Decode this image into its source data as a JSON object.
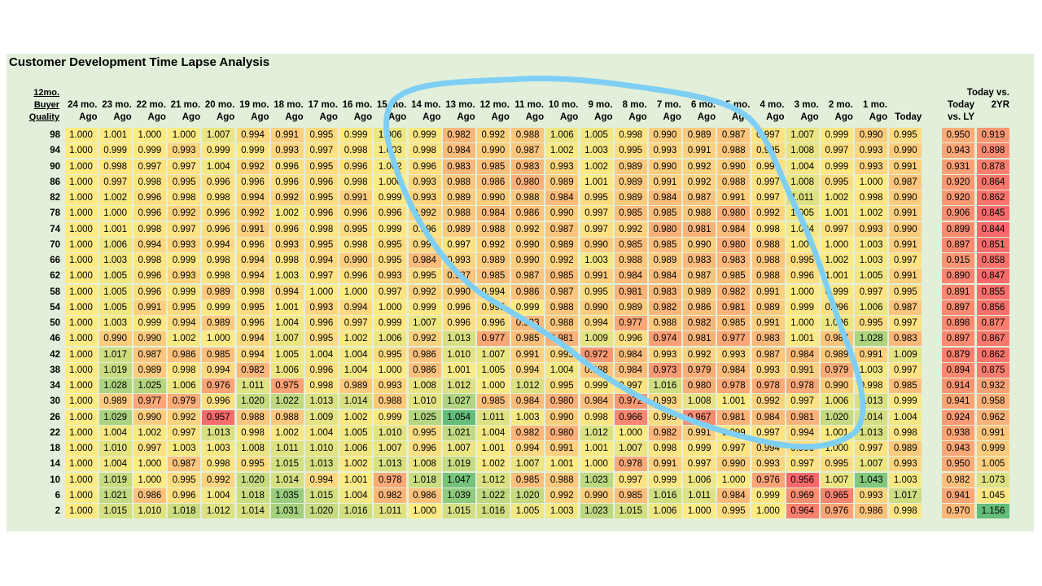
{
  "title": "Customer Development Time Lapse Analysis",
  "colors": {
    "panel_bg": "#e2efda",
    "low": "#f8696b",
    "mid": "#ffeb84",
    "high": "#63be7b",
    "annotation_stroke": "#7fcff5"
  },
  "chart_data": {
    "type": "heatmap",
    "row_header": [
      "12mo.",
      "Buyer",
      "Quality"
    ],
    "columns": [
      [
        "24 mo.",
        "Ago"
      ],
      [
        "23 mo.",
        "Ago"
      ],
      [
        "22 mo.",
        "Ago"
      ],
      [
        "21 mo.",
        "Ago"
      ],
      [
        "20 mo.",
        "Ago"
      ],
      [
        "19 mo.",
        "Ago"
      ],
      [
        "18 mo.",
        "Ago"
      ],
      [
        "17 mo.",
        "Ago"
      ],
      [
        "16 mo.",
        "Ago"
      ],
      [
        "15 mo.",
        "Ago"
      ],
      [
        "14 mo.",
        "Ago"
      ],
      [
        "13 mo.",
        "Ago"
      ],
      [
        "12 mo.",
        "Ago"
      ],
      [
        "11 mo.",
        "Ago"
      ],
      [
        "10 mo.",
        "Ago"
      ],
      [
        "9 mo.",
        "Ago"
      ],
      [
        "8 mo.",
        "Ago"
      ],
      [
        "7 mo.",
        "Ago"
      ],
      [
        "6 mo.",
        "Ago"
      ],
      [
        "5 mo.",
        "Ago"
      ],
      [
        "4 mo.",
        "Ago"
      ],
      [
        "3 mo.",
        "Ago"
      ],
      [
        "2 mo.",
        "Ago"
      ],
      [
        "1 mo.",
        "Ago"
      ],
      [
        "",
        "Today"
      ]
    ],
    "summary_columns": [
      [
        "Today",
        "vs. LY"
      ],
      [
        "Today vs.",
        "2YR"
      ]
    ],
    "rows": [
      98,
      94,
      90,
      86,
      82,
      78,
      74,
      70,
      66,
      62,
      58,
      54,
      50,
      46,
      42,
      38,
      34,
      30,
      26,
      22,
      18,
      14,
      10,
      6,
      2
    ],
    "values": [
      [
        1.0,
        1.001,
        1.0,
        1.0,
        1.007,
        0.994,
        0.991,
        0.995,
        0.999,
        1.006,
        0.999,
        0.982,
        0.992,
        0.988,
        1.006,
        1.005,
        0.998,
        0.99,
        0.989,
        0.987,
        0.997,
        1.007,
        0.999,
        0.99,
        0.995
      ],
      [
        1.0,
        0.999,
        0.999,
        0.993,
        0.999,
        0.999,
        0.993,
        0.997,
        0.998,
        1.003,
        0.998,
        0.984,
        0.99,
        0.987,
        1.002,
        1.003,
        0.995,
        0.993,
        0.991,
        0.988,
        0.995,
        1.008,
        0.997,
        0.993,
        0.99
      ],
      [
        1.0,
        0.998,
        0.997,
        0.997,
        1.004,
        0.992,
        0.996,
        0.995,
        0.996,
        1.002,
        0.996,
        0.983,
        0.985,
        0.983,
        0.993,
        1.002,
        0.989,
        0.99,
        0.992,
        0.99,
        0.996,
        1.004,
        0.999,
        0.993,
        0.991
      ],
      [
        1.0,
        0.997,
        0.998,
        0.995,
        0.996,
        0.996,
        0.996,
        0.996,
        0.998,
        1.0,
        0.993,
        0.988,
        0.986,
        0.98,
        0.989,
        1.001,
        0.989,
        0.991,
        0.992,
        0.988,
        0.997,
        1.008,
        0.995,
        1.0,
        0.987
      ],
      [
        1.0,
        1.002,
        0.996,
        0.998,
        0.998,
        0.994,
        0.992,
        0.995,
        0.991,
        0.999,
        0.993,
        0.989,
        0.99,
        0.988,
        0.984,
        0.995,
        0.989,
        0.984,
        0.987,
        0.991,
        0.997,
        1.011,
        1.002,
        0.998,
        0.99
      ],
      [
        1.0,
        1.0,
        0.996,
        0.992,
        0.996,
        0.992,
        1.002,
        0.996,
        0.996,
        0.996,
        0.992,
        0.988,
        0.984,
        0.986,
        0.99,
        0.997,
        0.985,
        0.985,
        0.988,
        0.98,
        0.992,
        1.005,
        1.001,
        1.002,
        0.991
      ],
      [
        1.0,
        1.001,
        0.998,
        0.997,
        0.996,
        0.991,
        0.996,
        0.998,
        0.995,
        0.999,
        0.996,
        0.989,
        0.988,
        0.992,
        0.987,
        0.997,
        0.992,
        0.98,
        0.981,
        0.984,
        0.998,
        1.004,
        0.997,
        0.993,
        0.99
      ],
      [
        1.0,
        1.006,
        0.994,
        0.993,
        0.994,
        0.996,
        0.993,
        0.995,
        0.998,
        0.995,
        0.994,
        0.997,
        0.992,
        0.99,
        0.989,
        0.99,
        0.985,
        0.985,
        0.99,
        0.98,
        0.988,
        1.0,
        1.0,
        1.003,
        0.991
      ],
      [
        1.0,
        1.003,
        0.998,
        0.999,
        0.998,
        0.994,
        0.998,
        0.994,
        0.99,
        0.995,
        0.984,
        0.993,
        0.989,
        0.99,
        0.992,
        1.003,
        0.988,
        0.989,
        0.983,
        0.983,
        0.988,
        0.995,
        1.002,
        1.003,
        0.997
      ],
      [
        1.0,
        1.005,
        0.996,
        0.993,
        0.998,
        0.994,
        1.003,
        0.997,
        0.996,
        0.993,
        0.995,
        0.987,
        0.985,
        0.987,
        0.985,
        0.991,
        0.984,
        0.984,
        0.987,
        0.985,
        0.988,
        0.996,
        1.001,
        1.005,
        0.991
      ],
      [
        1.0,
        1.005,
        0.996,
        0.999,
        0.989,
        0.998,
        0.994,
        1.0,
        1.0,
        0.997,
        0.992,
        0.99,
        0.994,
        0.986,
        0.987,
        0.995,
        0.981,
        0.983,
        0.989,
        0.982,
        0.991,
        1.0,
        0.999,
        0.997,
        0.995
      ],
      [
        1.0,
        1.005,
        0.991,
        0.995,
        0.999,
        0.995,
        1.001,
        0.993,
        0.994,
        1.0,
        0.999,
        0.996,
        0.995,
        0.999,
        0.988,
        0.99,
        0.989,
        0.982,
        0.986,
        0.981,
        0.989,
        0.999,
        0.996,
        1.006,
        0.987
      ],
      [
        1.0,
        1.003,
        0.999,
        0.994,
        0.989,
        0.996,
        1.004,
        0.996,
        0.997,
        0.999,
        1.007,
        0.996,
        0.996,
        0.983,
        0.988,
        0.994,
        0.977,
        0.988,
        0.982,
        0.985,
        0.991,
        1.0,
        1.006,
        0.995,
        0.997
      ],
      [
        1.0,
        0.99,
        0.99,
        1.002,
        1.0,
        0.994,
        1.007,
        0.995,
        1.002,
        1.006,
        0.992,
        1.013,
        0.977,
        0.985,
        0.981,
        1.009,
        0.996,
        0.974,
        0.981,
        0.977,
        0.983,
        1.001,
        0.987,
        1.028,
        0.983
      ],
      [
        1.0,
        1.017,
        0.987,
        0.986,
        0.985,
        0.994,
        1.005,
        1.004,
        1.004,
        0.995,
        0.986,
        1.01,
        1.007,
        0.991,
        0.993,
        0.972,
        0.984,
        0.993,
        0.992,
        0.993,
        0.987,
        0.984,
        0.989,
        0.991,
        1.009
      ],
      [
        1.0,
        1.019,
        0.989,
        0.998,
        0.994,
        0.982,
        1.006,
        0.996,
        1.004,
        1.0,
        0.986,
        1.001,
        1.005,
        0.994,
        1.004,
        0.988,
        0.984,
        0.973,
        0.979,
        0.984,
        0.993,
        0.991,
        0.979,
        1.003,
        0.997
      ],
      [
        1.0,
        1.028,
        1.025,
        1.006,
        0.976,
        1.011,
        0.975,
        0.998,
        0.989,
        0.993,
        1.008,
        1.012,
        1.0,
        1.012,
        0.995,
        0.999,
        0.997,
        1.016,
        0.98,
        0.978,
        0.978,
        0.978,
        0.99,
        0.998,
        0.985
      ],
      [
        1.0,
        0.989,
        0.977,
        0.979,
        0.996,
        1.02,
        1.022,
        1.013,
        1.014,
        0.988,
        1.01,
        1.027,
        0.985,
        0.984,
        0.98,
        0.984,
        0.972,
        0.993,
        1.008,
        1.001,
        0.992,
        0.997,
        1.006,
        1.013,
        0.999
      ],
      [
        1.0,
        1.029,
        0.99,
        0.992,
        0.957,
        0.988,
        0.988,
        1.009,
        1.002,
        0.999,
        1.025,
        1.054,
        1.011,
        1.003,
        0.99,
        0.998,
        0.966,
        0.995,
        0.967,
        0.981,
        0.984,
        0.981,
        1.02,
        1.014,
        1.004
      ],
      [
        1.0,
        1.004,
        1.002,
        0.997,
        1.013,
        0.998,
        1.002,
        1.004,
        1.005,
        1.01,
        0.995,
        1.021,
        1.004,
        0.982,
        0.98,
        1.012,
        1.0,
        0.982,
        0.991,
        0.999,
        0.997,
        0.994,
        1.001,
        1.013,
        0.998
      ],
      [
        1.0,
        1.01,
        0.997,
        1.003,
        1.003,
        1.008,
        1.011,
        1.01,
        1.006,
        1.007,
        0.996,
        1.007,
        1.001,
        0.994,
        0.991,
        1.001,
        1.007,
        0.998,
        0.999,
        0.997,
        0.994,
        0.996,
        1.0,
        0.997,
        0.989
      ],
      [
        1.0,
        1.004,
        1.0,
        0.987,
        0.998,
        0.995,
        1.015,
        1.013,
        1.002,
        1.013,
        1.008,
        1.019,
        1.002,
        1.007,
        1.001,
        1.0,
        0.978,
        0.991,
        0.997,
        0.99,
        0.993,
        0.997,
        0.995,
        1.007,
        0.993
      ],
      [
        1.0,
        1.019,
        1.0,
        0.995,
        0.992,
        1.02,
        1.014,
        0.994,
        1.001,
        0.978,
        1.018,
        1.047,
        1.012,
        0.985,
        0.988,
        1.023,
        0.997,
        0.999,
        1.006,
        1.0,
        0.976,
        0.956,
        1.007,
        1.043,
        1.003
      ],
      [
        1.0,
        1.021,
        0.986,
        0.996,
        1.004,
        1.018,
        1.035,
        1.015,
        1.004,
        0.982,
        0.986,
        1.039,
        1.022,
        1.02,
        0.992,
        0.99,
        0.985,
        1.016,
        1.011,
        0.984,
        0.999,
        0.969,
        0.965,
        0.993,
        1.017
      ],
      [
        1.0,
        1.015,
        1.01,
        1.018,
        1.012,
        1.014,
        1.031,
        1.02,
        1.016,
        1.011,
        1.0,
        1.015,
        1.016,
        1.005,
        1.003,
        1.023,
        1.015,
        1.006,
        1.0,
        0.995,
        1.0,
        0.964,
        0.976,
        0.986,
        0.998
      ]
    ],
    "summary_values": [
      [
        0.95,
        0.919
      ],
      [
        0.943,
        0.898
      ],
      [
        0.931,
        0.878
      ],
      [
        0.92,
        0.864
      ],
      [
        0.92,
        0.862
      ],
      [
        0.906,
        0.845
      ],
      [
        0.899,
        0.844
      ],
      [
        0.897,
        0.851
      ],
      [
        0.915,
        0.858
      ],
      [
        0.89,
        0.847
      ],
      [
        0.891,
        0.855
      ],
      [
        0.897,
        0.856
      ],
      [
        0.898,
        0.877
      ],
      [
        0.897,
        0.867
      ],
      [
        0.879,
        0.862
      ],
      [
        0.894,
        0.875
      ],
      [
        0.914,
        0.932
      ],
      [
        0.941,
        0.958
      ],
      [
        0.924,
        0.962
      ],
      [
        0.938,
        0.991
      ],
      [
        0.943,
        0.999
      ],
      [
        0.95,
        1.005
      ],
      [
        0.982,
        1.073
      ],
      [
        0.941,
        1.045
      ],
      [
        0.97,
        1.156
      ]
    ]
  }
}
